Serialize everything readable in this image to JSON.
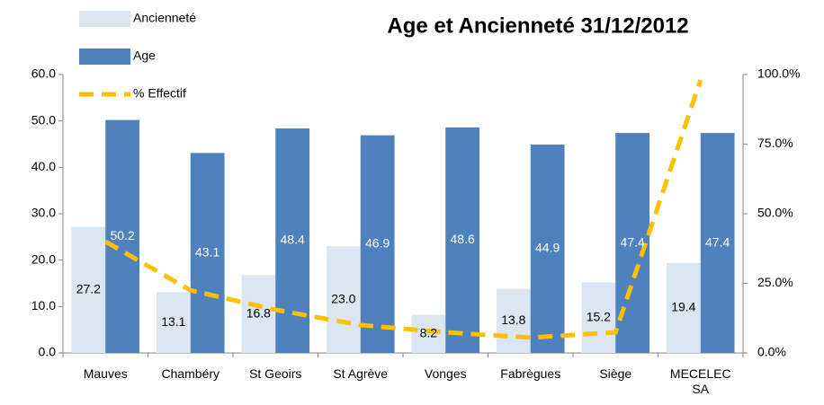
{
  "chart_data": {
    "type": "bar_line",
    "title": "Age et Ancienneté 31/12/2012",
    "categories": [
      "Mauves",
      "Chambéry",
      "St Geoirs",
      "St Agrève",
      "Vonges",
      "Fabrègues",
      "Siège",
      "MECELEC SA"
    ],
    "series": [
      {
        "name": "Ancienneté",
        "color": "#dce6f2",
        "values": [
          27.2,
          13.1,
          16.8,
          23.0,
          8.2,
          13.8,
          15.2,
          19.4
        ],
        "value_labels": [
          "27.2",
          "13.1",
          "16.8",
          "23.0",
          "8.2",
          "13.8",
          "15.2",
          "19.4"
        ]
      },
      {
        "name": "Age",
        "color": "#4f81bd",
        "values": [
          50.2,
          43.1,
          48.4,
          46.9,
          48.6,
          44.9,
          47.4,
          47.4
        ]
      },
      {
        "name": "% Effectif",
        "color": "#ffc000",
        "axis": "y2",
        "type": "line",
        "values": [
          40,
          22.5,
          15.5,
          10,
          7.4,
          5.5,
          7.4,
          98
        ]
      }
    ],
    "ylim": [
      0,
      60
    ],
    "yticks": [
      {
        "value": 0,
        "label": "0.0"
      },
      {
        "value": 10,
        "label": "10.0"
      },
      {
        "value": 20,
        "label": "20.0"
      },
      {
        "value": 30,
        "label": "30.0"
      },
      {
        "value": 40,
        "label": "40.0"
      },
      {
        "value": 50,
        "label": "50.0"
      },
      {
        "value": 60,
        "label": "60.0"
      }
    ],
    "y2lim": [
      0,
      100
    ],
    "y2ticks": [
      {
        "value": 0,
        "label": "0.0%"
      },
      {
        "value": 25,
        "label": "25.0%"
      },
      {
        "value": 50,
        "label": "50.0%"
      },
      {
        "value": 75,
        "label": "75.0%"
      },
      {
        "value": 100,
        "label": "100.0%"
      }
    ],
    "legend": "top-left"
  }
}
